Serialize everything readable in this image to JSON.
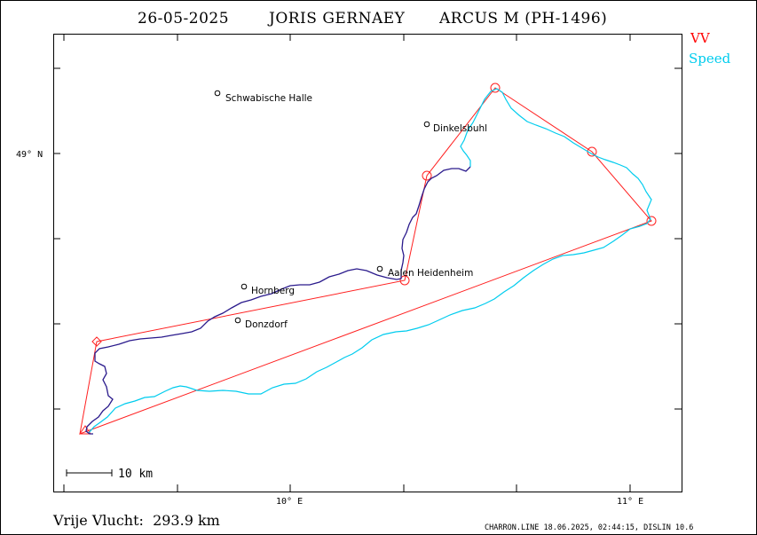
{
  "header": {
    "date": "26-05-2025",
    "pilot": "JORIS GERNAEY",
    "glider": "ARCUS M (PH-1496)"
  },
  "legend": {
    "vv_label": "VV",
    "vv_color": "#ff0000",
    "speed_label": "Speed",
    "speed_color": "#00ccee"
  },
  "axes": {
    "lat_label": "49° N",
    "lon_labels": [
      "10° E",
      "11° E"
    ]
  },
  "towns": [
    {
      "name": "Schwabische Halle"
    },
    {
      "name": "Dinkelsbuhl"
    },
    {
      "name": "Aalen Heidenheim"
    },
    {
      "name": "Hornberg"
    },
    {
      "name": "Donzdorf"
    }
  ],
  "scale_bar": {
    "label": "10  km"
  },
  "distance": {
    "text": "Vrije Vlucht:  293.9 km"
  },
  "footer": {
    "text": "CHARRON.LINE 18.06.2025, 02:44:15, DISLIN 10.6"
  },
  "colors": {
    "task": "#ff2020",
    "track_climb": "#2a1a8c",
    "track_speed": "#00ccee"
  }
}
